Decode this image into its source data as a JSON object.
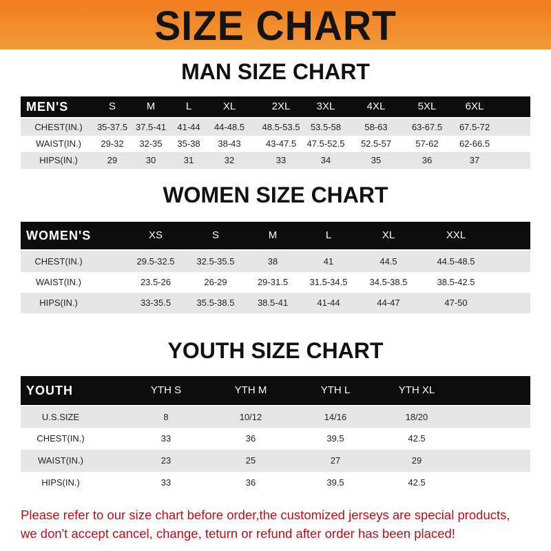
{
  "header": {
    "title": "SIZE CHART",
    "banner_color": "#f08a2a"
  },
  "men": {
    "title": "MAN SIZE CHART",
    "label": "MEN'S",
    "sizes": [
      "S",
      "M",
      "L",
      "XL",
      "2XL",
      "3XL",
      "4XL",
      "5XL",
      "6XL"
    ],
    "rows": [
      {
        "label": "CHEST(IN.)",
        "values": [
          "35-37.5",
          "37.5-41",
          "41-44",
          "44-48.5",
          "48.5-53.5",
          "53.5-58",
          "58-63",
          "63-67.5",
          "67.5-72"
        ]
      },
      {
        "label": "WAIST(IN.)",
        "values": [
          "29-32",
          "32-35",
          "35-38",
          "38-43",
          "43-47.5",
          "47.5-52.5",
          "52.5-57",
          "57-62",
          "62-66.5"
        ]
      },
      {
        "label": "HIPS(IN.)",
        "values": [
          "29",
          "30",
          "31",
          "32",
          "33",
          "34",
          "35",
          "36",
          "37"
        ]
      }
    ]
  },
  "women": {
    "title": "WOMEN SIZE CHART",
    "label": "WOMEN'S",
    "sizes": [
      "XS",
      "S",
      "M",
      "L",
      "XL",
      "XXL"
    ],
    "rows": [
      {
        "label": "CHEST(IN.)",
        "values": [
          "29.5-32.5",
          "32.5-35.5",
          "38",
          "41",
          "44.5",
          "44.5-48.5"
        ]
      },
      {
        "label": "WAIST(IN.)",
        "values": [
          "23.5-26",
          "26-29",
          "29-31.5",
          "31.5-34.5",
          "34.5-38.5",
          "38.5-42.5"
        ]
      },
      {
        "label": "HIPS(IN.)",
        "values": [
          "33-35.5",
          "35.5-38.5",
          "38.5-41",
          "41-44",
          "44-47",
          "47-50"
        ]
      }
    ]
  },
  "youth": {
    "title": "YOUTH SIZE CHART",
    "label": "YOUTH",
    "sizes": [
      "YTH S",
      "YTH M",
      "YTH L",
      "YTH XL"
    ],
    "rows": [
      {
        "label": "U.S.SIZE",
        "values": [
          "8",
          "10/12",
          "14/16",
          "18/20"
        ]
      },
      {
        "label": "CHEST(IN.)",
        "values": [
          "33",
          "36",
          "39.5",
          "42.5"
        ]
      },
      {
        "label": "WAIST(IN.)",
        "values": [
          "23",
          "25",
          "27",
          "29"
        ]
      },
      {
        "label": "HIPS(IN.)",
        "values": [
          "33",
          "36",
          "39.5",
          "42.5"
        ]
      }
    ]
  },
  "footer": {
    "line1": "Please refer to our size chart before order,the customized jerseys are special products,",
    "line2": "we don't accept cancel, change, teturn or refund after order has been placed!",
    "color": "#b3121a"
  }
}
